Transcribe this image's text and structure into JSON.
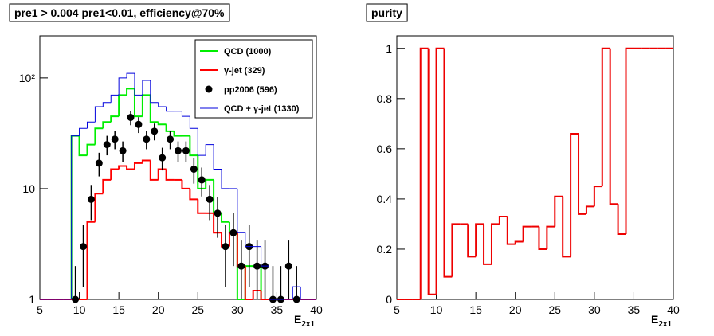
{
  "chart_data": [
    {
      "type": "histogram",
      "title": "pre1 > 0.004  pre1<0.01, efficiency@70%",
      "x_label": "E",
      "x_label_sub": "2x1",
      "log_y": true,
      "legend": "top-right",
      "xlim": [
        5,
        40
      ],
      "xticks": [
        5,
        10,
        15,
        20,
        25,
        30,
        35,
        40
      ],
      "ylim": [
        1,
        240
      ],
      "yticks": [
        1,
        10,
        {
          "value": 100,
          "label": "10²"
        }
      ],
      "bins": [
        5,
        6,
        7,
        8,
        9,
        10,
        11,
        12,
        13,
        14,
        15,
        16,
        17,
        18,
        19,
        20,
        21,
        22,
        23,
        24,
        25,
        26,
        27,
        28,
        29,
        30,
        31,
        32,
        33,
        34,
        35,
        36,
        37,
        38,
        39,
        40
      ],
      "series": [
        {
          "name": "QCD (1000)",
          "color": "#00ee00",
          "style": "step",
          "width": 2,
          "values": [
            1,
            1,
            1,
            1,
            30,
            20,
            25,
            35,
            40,
            45,
            70,
            80,
            45,
            70,
            40,
            38,
            33,
            30,
            30,
            20,
            10,
            12,
            6,
            5,
            4,
            1,
            2,
            2,
            1,
            1,
            1,
            1,
            1,
            1,
            1
          ]
        },
        {
          "name": "γ-jet (329)",
          "color": "#ff0000",
          "style": "step",
          "width": 2,
          "values": [
            1,
            1,
            1,
            1,
            1,
            1,
            5,
            9,
            12,
            15,
            16,
            15,
            17,
            18,
            12,
            15,
            12,
            12,
            10,
            8,
            6,
            6,
            4,
            3,
            4,
            2,
            1,
            1.2,
            1,
            1,
            1,
            1,
            1,
            1,
            1
          ]
        },
        {
          "name": "pp2006 (596)",
          "color": "#000000",
          "style": "points",
          "values": [
            null,
            null,
            null,
            null,
            1,
            3,
            8,
            17,
            25,
            28,
            22,
            44,
            38,
            28,
            33,
            19,
            28,
            22,
            22,
            15,
            12,
            8,
            6,
            3,
            4,
            2,
            3,
            2,
            2,
            1,
            1,
            2,
            1,
            null,
            null
          ],
          "errors": [
            null,
            null,
            null,
            null,
            1,
            1.7,
            2.8,
            4.1,
            5,
            5.3,
            4.7,
            6.6,
            6.2,
            5.3,
            5.7,
            4.4,
            5.3,
            4.7,
            4.7,
            3.9,
            3.5,
            2.8,
            2.4,
            1.7,
            2,
            1.4,
            1.7,
            1.4,
            1.4,
            1,
            1,
            1.4,
            1,
            null,
            null
          ]
        },
        {
          "name": "QCD + γ-jet (1330)",
          "color": "#0000dd",
          "style": "step",
          "width": 1,
          "values": [
            1,
            1,
            1,
            1,
            30,
            35,
            40,
            55,
            60,
            70,
            100,
            110,
            70,
            95,
            60,
            55,
            50,
            50,
            45,
            35,
            20,
            25,
            15,
            10,
            10,
            4,
            3,
            3,
            2,
            1,
            1,
            1,
            1.3,
            1,
            1
          ]
        }
      ]
    },
    {
      "type": "histogram",
      "title": "purity",
      "x_label": "E",
      "x_label_sub": "2x1",
      "log_y": false,
      "xlim": [
        5,
        40
      ],
      "xticks": [
        5,
        10,
        15,
        20,
        25,
        30,
        35,
        40
      ],
      "ylim": [
        0,
        1.05
      ],
      "yticks": [
        0,
        0.2,
        0.4,
        0.6,
        0.8,
        1
      ],
      "bins": [
        5,
        6,
        7,
        8,
        9,
        10,
        11,
        12,
        13,
        14,
        15,
        16,
        17,
        18,
        19,
        20,
        21,
        22,
        23,
        24,
        25,
        26,
        27,
        28,
        29,
        30,
        31,
        32,
        33,
        34,
        35,
        36,
        37,
        38,
        39,
        40
      ],
      "series": [
        {
          "color": "#ee0000",
          "style": "step",
          "width": 2,
          "values": [
            0,
            0,
            0,
            1,
            0.02,
            1,
            0.09,
            0.3,
            0.3,
            0.17,
            0.3,
            0.14,
            0.3,
            0.33,
            0.22,
            0.23,
            0.29,
            0.29,
            0.2,
            0.29,
            0.41,
            0.17,
            0.66,
            0.34,
            0.37,
            0.45,
            1,
            0.38,
            0.26,
            1,
            1,
            1,
            1,
            1,
            1
          ]
        }
      ]
    }
  ]
}
